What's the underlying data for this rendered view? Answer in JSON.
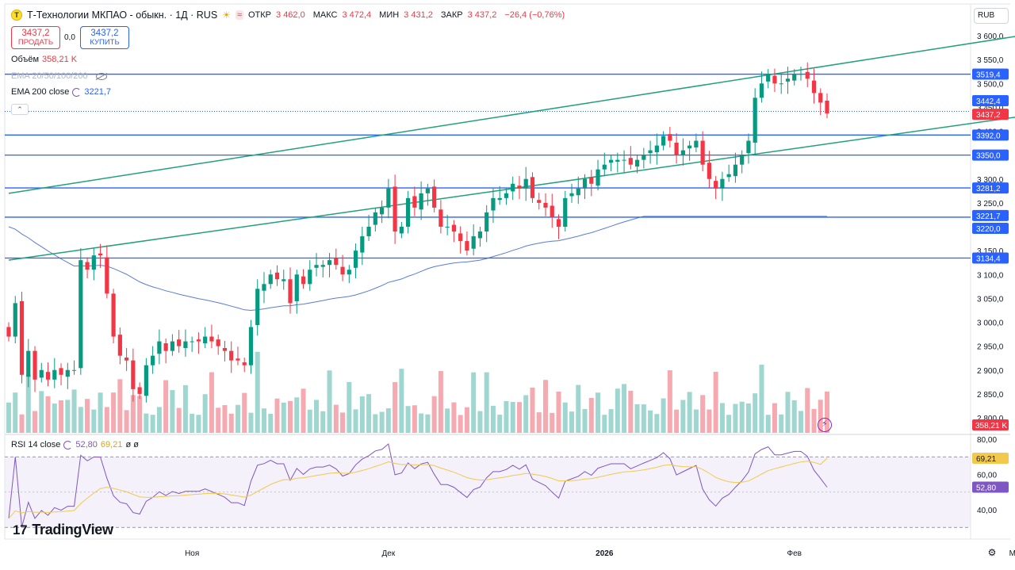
{
  "header": {
    "logo_letter": "T",
    "title": "Т-Технологии МКПАО - обыкн. · 1Д · RUS",
    "icons": [
      "sun-icon",
      "approx-icon"
    ],
    "ohlc": {
      "open_label": "ОТКР",
      "open": "3 462,0",
      "high_label": "МАКС",
      "high": "3 472,4",
      "low_label": "МИН",
      "low": "3 431,2",
      "close_label": "ЗАКР",
      "close": "3 437,2",
      "change": "−26,4 (−0,76%)"
    }
  },
  "trade": {
    "sell_price": "3437,2",
    "sell_label": "ПРОДАТЬ",
    "spread": "0,0",
    "buy_price": "3437,2",
    "buy_label": "КУПИТЬ"
  },
  "indicators": {
    "volume_label": "Объём",
    "volume_value": "358,21 K",
    "ema_multi_label": "EMA 20/50/100/200",
    "ema200_label": "EMA 200 close",
    "ema200_value": "3221,7"
  },
  "currency": "RUB",
  "rsi": {
    "label": "RSI 14 close",
    "value": "52,80",
    "ma_value": "69,21",
    "extra": "ø ø"
  },
  "brand": "TradingView",
  "colors": {
    "up": "#089981",
    "down": "#f23645",
    "level_line": "#2962ff",
    "trend_line": "#22a07a",
    "ema_line": "#5b7bd8",
    "rsi_line": "#7e57c2",
    "rsi_ma": "#f2c94c"
  },
  "chart_data": {
    "type": "candlestick",
    "timeframe": "1D",
    "y_axis_ticks": [
      "3 600,0",
      "3 550,0",
      "3 500,0",
      "3 450,0",
      "3 400,0",
      "3 350,0",
      "3 300,0",
      "3 250,0",
      "3 200,0",
      "3 150,0",
      "3 100,0",
      "3 050,0",
      "3 000,0",
      "2 950,0",
      "2 900,0",
      "2 850,0",
      "2 800,0"
    ],
    "y_axis_values": [
      3600,
      3550,
      3500,
      3450,
      3400,
      3350,
      3300,
      3250,
      3200,
      3150,
      3100,
      3050,
      3000,
      2950,
      2900,
      2850,
      2800
    ],
    "y_range": [
      2780,
      3620
    ],
    "x_axis_labels": [
      "Ноя",
      "Дек",
      "2026",
      "Фев",
      "Мар"
    ],
    "x_axis_index": [
      28,
      58,
      91,
      120,
      154
    ],
    "horizontal_levels": [
      {
        "value": 3519.4,
        "label": "3519,4"
      },
      {
        "value": 3442.4,
        "label": "3442,4"
      },
      {
        "value": 3437.2,
        "label": "3437,2"
      },
      {
        "value": 3392.0,
        "label": "3392,0"
      },
      {
        "value": 3350.0,
        "label": "3350,0"
      },
      {
        "value": 3281.2,
        "label": "3281,2"
      },
      {
        "value": 3221.7,
        "label": "3221,7"
      },
      {
        "value": 3220.0,
        "label": "3220,0"
      },
      {
        "value": 3134.4,
        "label": "3134,4"
      }
    ],
    "volume_last": "358,21 K",
    "trendlines": [
      {
        "name": "upper-channel",
        "from": {
          "i": 0,
          "v": 3270
        },
        "to": {
          "i": 162,
          "v": 3616
        }
      },
      {
        "name": "lower-channel",
        "from": {
          "i": 0,
          "v": 3130
        },
        "to": {
          "i": 171,
          "v": 3463
        }
      }
    ],
    "close": [
      2970,
      3040,
      2890,
      2940,
      2880,
      2900,
      2880,
      2900,
      2890,
      2900,
      2900,
      3130,
      3110,
      3140,
      3140,
      3060,
      2970,
      2930,
      2920,
      2860,
      2850,
      2910,
      2930,
      2960,
      2940,
      2960,
      2950,
      2960,
      2960,
      2960,
      2970,
      2960,
      2950,
      2940,
      2920,
      2920,
      2910,
      2990,
      3070,
      3080,
      3100,
      3090,
      3090,
      3040,
      3100,
      3080,
      3110,
      3120,
      3120,
      3130,
      3120,
      3100,
      3110,
      3150,
      3180,
      3200,
      3230,
      3240,
      3280,
      3190,
      3200,
      3260,
      3240,
      3270,
      3280,
      3240,
      3200,
      3200,
      3190,
      3170,
      3150,
      3180,
      3190,
      3230,
      3260,
      3260,
      3270,
      3290,
      3280,
      3300,
      3260,
      3250,
      3240,
      3220,
      3200,
      3260,
      3270,
      3280,
      3300,
      3290,
      3320,
      3330,
      3340,
      3340,
      3340,
      3330,
      3340,
      3350,
      3360,
      3370,
      3390,
      3380,
      3350,
      3360,
      3370,
      3380,
      3330,
      3300,
      3280,
      3300,
      3310,
      3330,
      3350,
      3380,
      3470,
      3500,
      3520,
      3500,
      3500,
      3510,
      3520,
      3520,
      3510,
      3480,
      3460,
      3437.2
    ],
    "rsi_range": [
      25,
      80
    ],
    "rsi_axis_ticks": [
      "80,00",
      "60,00",
      "40,00"
    ],
    "rsi_axis_values": [
      80,
      60,
      40
    ],
    "rsi_levels": [
      70,
      30
    ]
  }
}
